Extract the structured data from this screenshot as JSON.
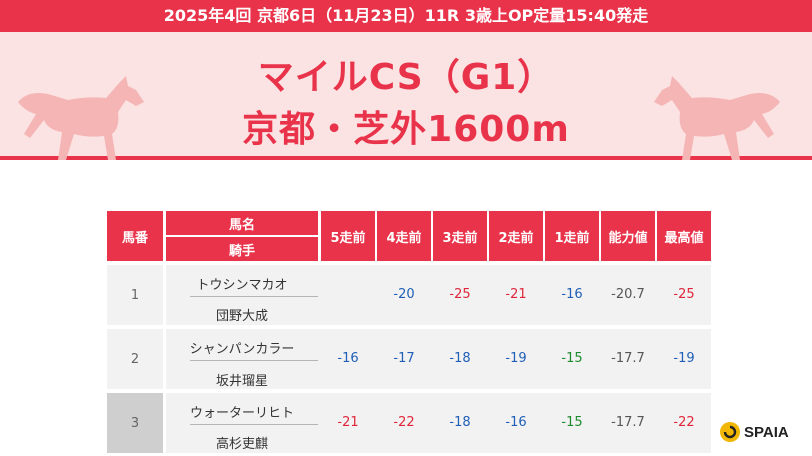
{
  "race_header": "2025年4回 京都6日（11月23日）11R 3歳上OP定量15:40発走",
  "race_title": "マイルCS（G1）",
  "race_course": "京都・芝外1600m",
  "columns": {
    "number": "馬番",
    "horse": "馬名",
    "jockey": "騎手",
    "r5": "5走前",
    "r4": "4走前",
    "r3": "3走前",
    "r2": "2走前",
    "r1": "1走前",
    "ability": "能力値",
    "best": "最高値"
  },
  "rows": [
    {
      "number": "1",
      "horse": "トウシンマカオ",
      "jockey": "団野大成",
      "r5": "",
      "r4": "-20",
      "r3": "-25",
      "r2": "-21",
      "r1": "-16",
      "ability": "-20.7",
      "best": "-25"
    },
    {
      "number": "2",
      "horse": "シャンパンカラー",
      "jockey": "坂井瑠星",
      "r5": "-16",
      "r4": "-17",
      "r3": "-18",
      "r2": "-19",
      "r1": "-15",
      "ability": "-17.7",
      "best": "-19"
    },
    {
      "number": "3",
      "horse": "ウォーターリヒト",
      "jockey": "高杉吏麒",
      "r5": "-21",
      "r4": "-22",
      "r3": "-18",
      "r2": "-16",
      "r1": "-15",
      "ability": "-17.7",
      "best": "-22"
    }
  ],
  "logo": "SPAIA",
  "colors": {
    "accent": "#e8334a",
    "banner_bg": "#fbe3e3",
    "blue": "#1f5fb8",
    "red": "#e0253a",
    "green": "#1e8c2e"
  }
}
